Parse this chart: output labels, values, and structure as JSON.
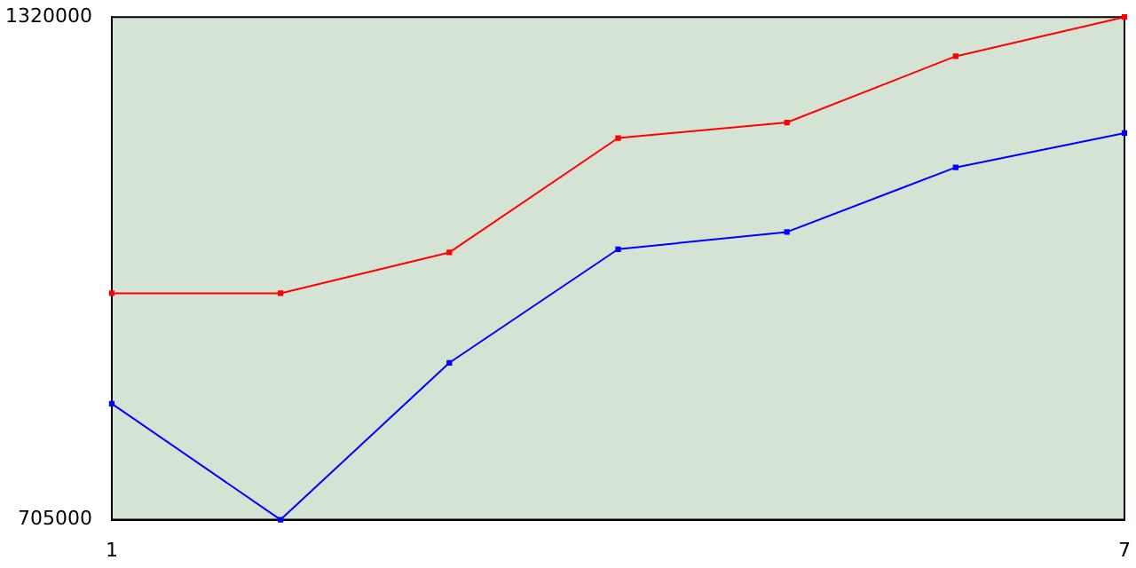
{
  "chart_data": {
    "type": "line",
    "x": [
      1,
      2,
      3,
      4,
      5,
      6,
      7
    ],
    "series": [
      {
        "color": "#ff0000",
        "values": [
          982000,
          982000,
          1032000,
          1172000,
          1191000,
          1272000,
          1320000
        ]
      },
      {
        "color": "#0000ff",
        "values": [
          847000,
          705000,
          897000,
          1036000,
          1057000,
          1136000,
          1178000
        ]
      }
    ],
    "xlim": [
      1,
      7
    ],
    "xticks": [
      1,
      7
    ],
    "ylim": [
      705000,
      1320000
    ],
    "yticks": [
      705000,
      1320000
    ],
    "grid": false,
    "legend": false,
    "marker": "square",
    "line_style": "solid"
  }
}
